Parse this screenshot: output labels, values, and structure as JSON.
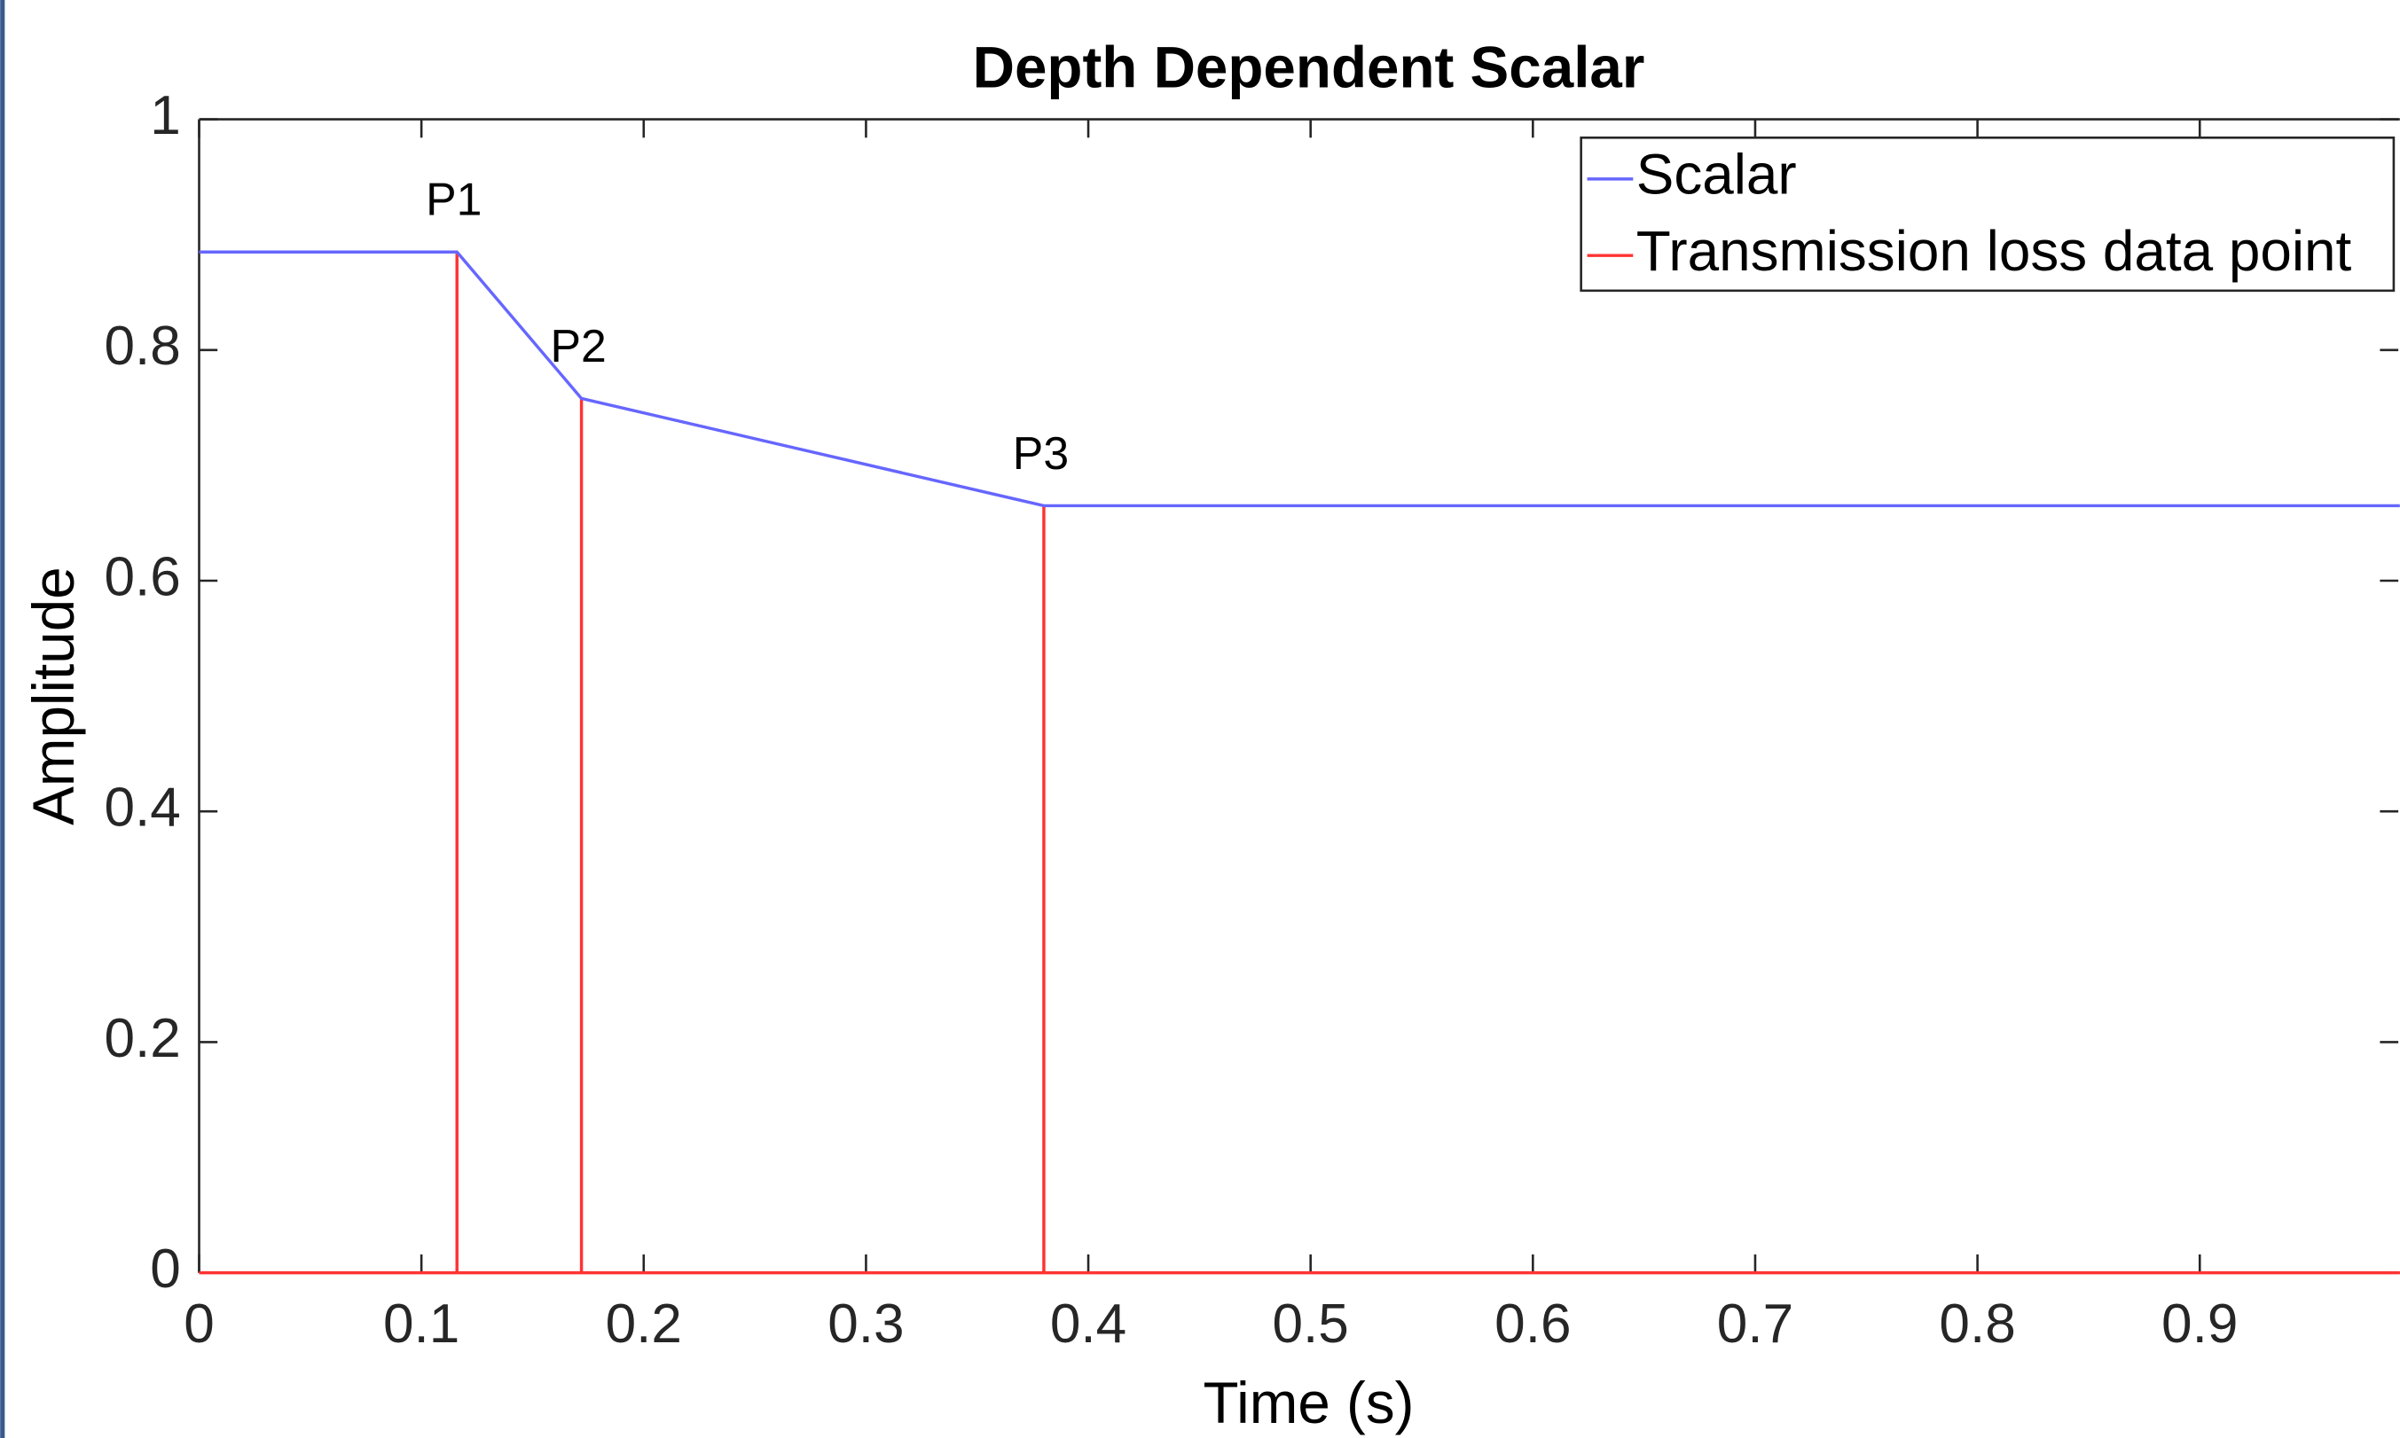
{
  "chart_data": {
    "type": "line",
    "title": "Depth Dependent Scalar",
    "xlabel": "Time (s)",
    "ylabel": "Amplitude",
    "xlim": [
      0,
      0.99
    ],
    "ylim": [
      0,
      1
    ],
    "xticks": [
      0,
      0.1,
      0.2,
      0.3,
      0.4,
      0.5,
      0.6,
      0.7,
      0.8,
      0.9
    ],
    "yticks": [
      0,
      0.2,
      0.4,
      0.6,
      0.8,
      1
    ],
    "series": [
      {
        "name": "Scalar",
        "color": "#6666ff",
        "x": [
          0,
          0.116,
          0.172,
          0.38,
          0.99
        ],
        "values": [
          0.885,
          0.885,
          0.758,
          0.665,
          0.665
        ]
      },
      {
        "name": "Transmission loss data point",
        "color": "#ff3333",
        "x": [
          0,
          0.116,
          0.116,
          0.116,
          0.172,
          0.172,
          0.172,
          0.38,
          0.38,
          0.38,
          0.99
        ],
        "values": [
          0,
          0,
          0.885,
          0,
          0,
          0.758,
          0,
          0,
          0.665,
          0,
          0
        ]
      }
    ],
    "annotations": [
      "P1",
      "P2",
      "P3"
    ],
    "legend": "northeast"
  }
}
